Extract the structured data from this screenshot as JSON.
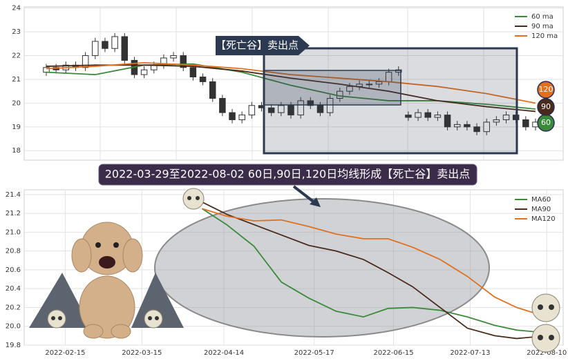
{
  "chart_data": [
    {
      "type": "candlestick",
      "annotation": "【死亡谷】卖出点",
      "ylim": [
        17.6,
        24.05
      ],
      "yticks": [
        18,
        19,
        20,
        21,
        22,
        23,
        24
      ],
      "grid": true,
      "legend": "upper right",
      "open": [
        21.3,
        21.5,
        21.4,
        21.6,
        21.5,
        22.0,
        22.6,
        22.3,
        22.8,
        21.8,
        21.2,
        21.4,
        21.6,
        21.9,
        22.0,
        21.5,
        21.1,
        20.9,
        20.2,
        19.6,
        19.3,
        19.5,
        19.9,
        19.8,
        19.6,
        19.9,
        19.5,
        20.1,
        19.9,
        19.6,
        20.2,
        20.5,
        20.7,
        20.8,
        20.8,
        20.9,
        21.3,
        19.5,
        19.4,
        19.6,
        19.4,
        19.5,
        19.0,
        19.1,
        19.0,
        18.8,
        19.2,
        19.3,
        19.5,
        19.3,
        19.0
      ],
      "high": [
        21.65,
        21.65,
        21.75,
        21.75,
        22.15,
        22.75,
        22.75,
        22.95,
        22.95,
        21.95,
        21.55,
        21.75,
        22.05,
        22.15,
        22.15,
        21.65,
        21.25,
        21.05,
        20.35,
        19.75,
        19.65,
        20.05,
        20.05,
        19.95,
        20.05,
        20.05,
        20.25,
        20.25,
        20.05,
        20.35,
        20.65,
        20.85,
        20.95,
        20.95,
        21.05,
        21.45,
        21.55,
        19.65,
        19.75,
        19.75,
        19.65,
        19.65,
        19.25,
        19.25,
        19.15,
        19.35,
        19.45,
        19.65,
        19.65,
        19.45,
        19.35
      ],
      "low": [
        21.15,
        21.25,
        21.25,
        21.35,
        21.35,
        21.85,
        22.15,
        22.15,
        21.65,
        21.05,
        21.05,
        21.25,
        21.45,
        21.75,
        21.35,
        20.95,
        20.75,
        20.05,
        19.45,
        19.15,
        19.15,
        19.35,
        19.65,
        19.45,
        19.45,
        19.35,
        19.35,
        19.75,
        19.45,
        19.45,
        20.05,
        20.35,
        20.55,
        20.65,
        20.65,
        20.75,
        21.15,
        19.25,
        19.25,
        19.25,
        19.25,
        18.85,
        18.85,
        18.85,
        18.65,
        18.65,
        19.05,
        19.15,
        19.15,
        18.85,
        18.85
      ],
      "close": [
        21.5,
        21.4,
        21.6,
        21.5,
        22.0,
        22.6,
        22.3,
        22.8,
        21.8,
        21.2,
        21.4,
        21.6,
        21.9,
        22.0,
        21.5,
        21.1,
        20.9,
        20.2,
        19.6,
        19.3,
        19.5,
        19.9,
        19.8,
        19.6,
        19.9,
        19.5,
        20.1,
        19.9,
        19.6,
        20.2,
        20.5,
        20.7,
        20.8,
        20.8,
        20.9,
        21.3,
        21.4,
        19.4,
        19.6,
        19.4,
        19.5,
        19.0,
        19.1,
        19.0,
        18.8,
        19.2,
        19.3,
        19.5,
        19.3,
        19.0,
        19.2
      ],
      "series": [
        {
          "name": "60 ma",
          "color": "#3a8a3a",
          "end_label": "60",
          "values": [
            21.3,
            21.2,
            21.6,
            21.65,
            21.3,
            20.75,
            20.3,
            20.1,
            20.1,
            19.95,
            19.75
          ]
        },
        {
          "name": "90 ma",
          "color": "#4a2a1a",
          "end_label": "90",
          "values": [
            21.55,
            21.6,
            21.6,
            21.55,
            21.35,
            21.05,
            20.8,
            20.5,
            20.1,
            19.85,
            19.65
          ]
        },
        {
          "name": "120 ma",
          "color": "#e0701e",
          "end_label": "120",
          "values": [
            21.45,
            21.55,
            21.7,
            21.6,
            21.45,
            21.2,
            21.05,
            20.9,
            20.7,
            20.4,
            20.0
          ]
        }
      ]
    },
    {
      "type": "line",
      "annotation": "2022-03-29至2022-08-02 60日,90日,120日均线形成【死亡谷】卖出点",
      "legend": "upper right",
      "grid": true,
      "xlim": [
        "2022-01-31",
        "2022-08-16"
      ],
      "xticks": [
        "2022-02-15",
        "2022-03-15",
        "2022-04-14",
        "2022-05-17",
        "2022-06-15",
        "2022-07-13",
        "2022-08-10"
      ],
      "ylim": [
        19.8,
        21.45
      ],
      "yticks": [
        19.8,
        {
          "value": 20,
          "label": "20.0"
        },
        20.2,
        20.4,
        20.6,
        20.8,
        {
          "value": 21,
          "label": "21.0"
        },
        21.2,
        21.4
      ],
      "x": [
        "2022-04-06",
        "2022-04-15",
        "2022-04-25",
        "2022-05-05",
        "2022-05-15",
        "2022-05-25",
        "2022-06-04",
        "2022-06-13",
        "2022-06-22",
        "2022-07-02",
        "2022-07-12",
        "2022-07-22",
        "2022-07-30",
        "2022-08-10"
      ],
      "series": [
        {
          "name": "MA60",
          "color": "#3a8a3a",
          "values": [
            21.25,
            21.08,
            20.85,
            20.47,
            20.3,
            20.16,
            20.1,
            20.19,
            20.2,
            20.17,
            20.1,
            20.01,
            19.96,
            19.93
          ]
        },
        {
          "name": "MA90",
          "color": "#4a2a1a",
          "values": [
            21.32,
            21.19,
            21.08,
            20.97,
            20.86,
            20.8,
            20.71,
            20.57,
            20.42,
            20.2,
            19.98,
            19.9,
            19.87,
            19.9
          ]
        },
        {
          "name": "MA120",
          "color": "#e0701e",
          "values": [
            21.25,
            21.17,
            21.12,
            21.13,
            21.06,
            20.98,
            20.93,
            20.93,
            20.84,
            20.71,
            20.53,
            20.31,
            20.2,
            20.1
          ]
        }
      ]
    }
  ]
}
